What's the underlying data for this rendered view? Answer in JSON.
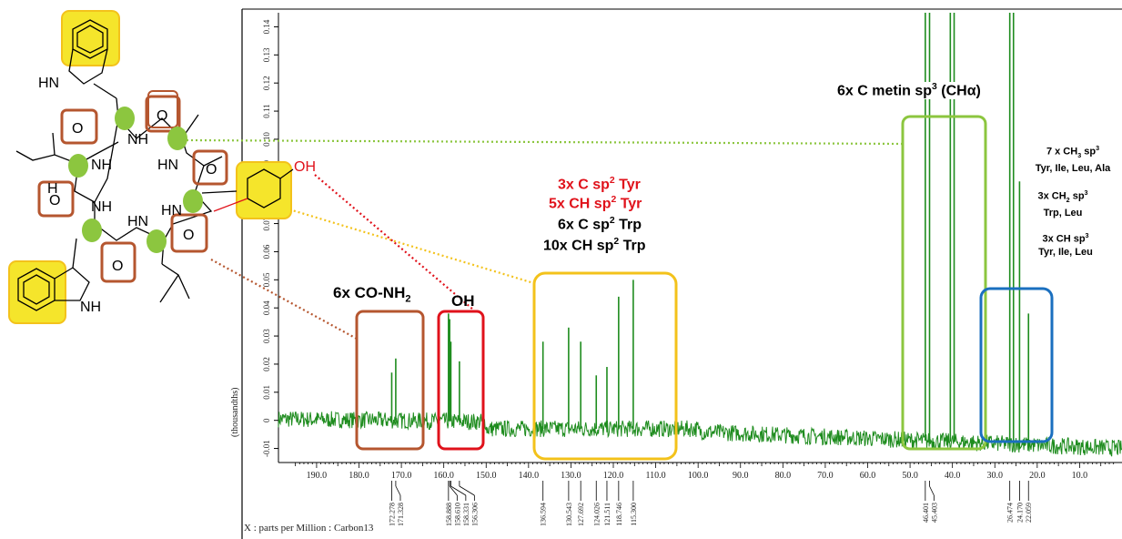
{
  "chart_data": {
    "type": "line",
    "title": "",
    "xlabel": "X : parts per Million : Carbon13",
    "ylabel": "(thousandths)",
    "xlim": [
      199.0,
      0.0
    ],
    "ylim": [
      -0.015,
      0.145
    ],
    "x_reversed": true,
    "x_ticks": [
      "190.0",
      "180.0",
      "170.0",
      "160.0",
      "150.0",
      "140.0",
      "130.0",
      "120.0",
      "110.0",
      "100.0",
      "90.0",
      "80.0",
      "70.0",
      "60.0",
      "50.0",
      "40.0",
      "30.0",
      "20.0",
      "10.0"
    ],
    "y_ticks": [
      "-0.01",
      "0",
      "0.01",
      "0.02",
      "0.03",
      "0.04",
      "0.05",
      "0.06",
      "0.07",
      "0.08",
      "0.09",
      "0.10",
      "0.11",
      "0.12",
      "0.13",
      "0.14"
    ],
    "series": [
      {
        "color": "#1e8c1e",
        "peaks": [
          {
            "x": 172.278,
            "y": 0.017
          },
          {
            "x": 171.328,
            "y": 0.022
          },
          {
            "x": 158.888,
            "y": 0.038
          },
          {
            "x": 158.61,
            "y": 0.036
          },
          {
            "x": 158.331,
            "y": 0.028
          },
          {
            "x": 156.306,
            "y": 0.021
          },
          {
            "x": 136.594,
            "y": 0.028
          },
          {
            "x": 130.543,
            "y": 0.033
          },
          {
            "x": 127.692,
            "y": 0.028
          },
          {
            "x": 124.026,
            "y": 0.016
          },
          {
            "x": 121.511,
            "y": 0.019
          },
          {
            "x": 118.746,
            "y": 0.044
          },
          {
            "x": 115.3,
            "y": 0.05
          },
          {
            "x": 46.401,
            "y": 0.145
          },
          {
            "x": 45.403,
            "y": 0.145
          },
          {
            "x": 40.5,
            "y": 0.145
          },
          {
            "x": 39.6,
            "y": 0.145
          },
          {
            "x": 26.474,
            "y": 0.145
          },
          {
            "x": 25.6,
            "y": 0.145
          },
          {
            "x": 24.17,
            "y": 0.085
          },
          {
            "x": 22.059,
            "y": 0.038
          }
        ]
      }
    ],
    "peak_labels": [
      "172.278",
      "171.328",
      "158.888",
      "158.610",
      "158.331",
      "156.306",
      "136.594",
      "130.543",
      "127.692",
      "124.026",
      "121.511",
      "118.746",
      "115.300",
      "46.401",
      "45.403",
      "26.474",
      "24.170",
      "22.059"
    ]
  },
  "annotations": {
    "co_nh2": {
      "text": "6x CO-NH",
      "sub": "2"
    },
    "oh": "OH",
    "tyr_c": {
      "pre": "3x C sp",
      "sup": "2",
      "post": " Tyr"
    },
    "tyr_ch": {
      "pre": "5x CH sp",
      "sup": "2",
      "post": " Tyr"
    },
    "trp_c": {
      "pre": "6x C sp",
      "sup": "2",
      "post": " Trp"
    },
    "trp_ch": {
      "pre": "10x CH sp",
      "sup": "2",
      "post": " Trp"
    },
    "metin": {
      "pre": "6x C metin sp",
      "sup": "3",
      "post": " (CHα)"
    },
    "ch3": {
      "pre": "7 x CH",
      "sub": "3",
      "mid": " sp",
      "sup": "3",
      "line2": "Tyr, Ile, Leu, Ala"
    },
    "ch2": {
      "pre": "3x CH",
      "sub": "2",
      "mid": " sp",
      "sup": "3",
      "line2": "Trp, Leu"
    },
    "ch": {
      "pre": "3x CH sp",
      "sup": "3",
      "line2": "Tyr, Ile, Leu"
    }
  },
  "molecule": {
    "labels": [
      "HN",
      "NH",
      "NH",
      "HN",
      "NH",
      "HN",
      "HN",
      "NH",
      "H",
      "OH"
    ],
    "colors": {
      "aromatic": "#f5e52b",
      "carbonyl_box": "#b5562f",
      "alpha_dot": "#8cc63f"
    }
  },
  "colors": {
    "spectrum": "#1e8c1e",
    "box_brown": "#b5562f",
    "box_red": "#e0121b",
    "box_yellow": "#f3c21b",
    "box_lightgreen": "#8cc63f",
    "box_blue": "#1a6fbf",
    "text_red": "#e0121b"
  }
}
